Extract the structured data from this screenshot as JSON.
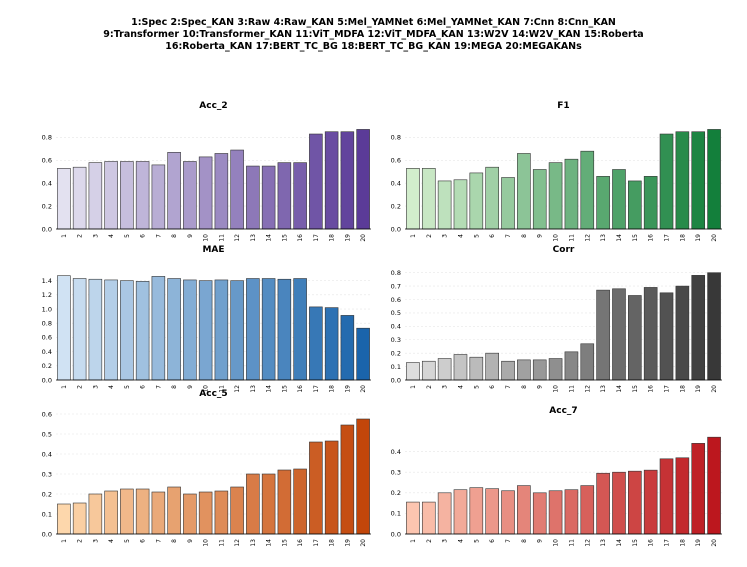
{
  "legend": {
    "line1": "1:Spec 2:Spec_KAN 3:Raw 4:Raw_KAN 5:Mel_YAMNet 6:Mel_YAMNet_KAN 7:Cnn 8:Cnn_KAN",
    "line2": "9:Transformer 10:Transformer_KAN 11:ViT_MDFA 12:ViT_MDFA_KAN 13:W2V 14:W2V_KAN 15:Roberta",
    "line3": "16:Roberta_KAN 17:BERT_TC_BG 18:BERT_TC_BG_KAN 19:MEGA 20:MEGAKANs"
  },
  "chart_data": [
    {
      "type": "bar",
      "title": "Acc_2",
      "categories": [
        "1",
        "2",
        "3",
        "4",
        "5",
        "6",
        "7",
        "8",
        "9",
        "10",
        "11",
        "12",
        "13",
        "14",
        "15",
        "16",
        "17",
        "18",
        "19",
        "20"
      ],
      "values": [
        0.53,
        0.54,
        0.58,
        0.59,
        0.59,
        0.59,
        0.56,
        0.67,
        0.59,
        0.63,
        0.66,
        0.69,
        0.55,
        0.55,
        0.58,
        0.58,
        0.83,
        0.85,
        0.85,
        0.87
      ],
      "ylim": [
        0,
        0.9
      ],
      "yticks": [
        0.0,
        0.2,
        0.4,
        0.6,
        0.8
      ],
      "tick_labels": [
        "0.0",
        "0.2",
        "0.4",
        "0.6",
        "0.8"
      ],
      "colors": {
        "light": "#e3e1f0",
        "dark": "#5b3b98"
      },
      "grid": true
    },
    {
      "type": "bar",
      "title": "F1",
      "categories": [
        "1",
        "2",
        "3",
        "4",
        "5",
        "6",
        "7",
        "8",
        "9",
        "10",
        "11",
        "12",
        "13",
        "14",
        "15",
        "16",
        "17",
        "18",
        "19",
        "20"
      ],
      "values": [
        0.53,
        0.53,
        0.42,
        0.43,
        0.49,
        0.54,
        0.45,
        0.66,
        0.52,
        0.58,
        0.61,
        0.68,
        0.46,
        0.52,
        0.42,
        0.46,
        0.83,
        0.85,
        0.85,
        0.87
      ],
      "ylim": [
        0,
        0.9
      ],
      "yticks": [
        0.0,
        0.2,
        0.4,
        0.6,
        0.8
      ],
      "tick_labels": [
        "0.0",
        "0.2",
        "0.4",
        "0.6",
        "0.8"
      ],
      "colors": {
        "light": "#d2edcc",
        "dark": "#137f3b"
      },
      "grid": true
    },
    {
      "type": "bar",
      "title": "MAE",
      "categories": [
        "1",
        "2",
        "3",
        "4",
        "5",
        "6",
        "7",
        "8",
        "9",
        "10",
        "11",
        "12",
        "13",
        "14",
        "15",
        "16",
        "17",
        "18",
        "19",
        "20"
      ],
      "values": [
        1.47,
        1.43,
        1.42,
        1.41,
        1.4,
        1.39,
        1.46,
        1.43,
        1.41,
        1.4,
        1.41,
        1.4,
        1.43,
        1.43,
        1.42,
        1.43,
        1.03,
        1.02,
        0.91,
        0.73
      ],
      "ylim": [
        0,
        1.55
      ],
      "yticks": [
        0.0,
        0.2,
        0.4,
        0.6,
        0.8,
        1.0,
        1.2,
        1.4
      ],
      "tick_labels": [
        "0.0",
        "0.2",
        "0.4",
        "0.6",
        "0.8",
        "1.0",
        "1.2",
        "1.4"
      ],
      "colors": {
        "light": "#d0e2f3",
        "dark": "#1a64ab"
      },
      "grid": true
    },
    {
      "type": "bar",
      "title": "Corr",
      "categories": [
        "1",
        "2",
        "3",
        "4",
        "5",
        "6",
        "7",
        "8",
        "9",
        "10",
        "11",
        "12",
        "13",
        "14",
        "15",
        "16",
        "17",
        "18",
        "19",
        "20"
      ],
      "values": [
        0.13,
        0.14,
        0.16,
        0.19,
        0.17,
        0.2,
        0.14,
        0.15,
        0.15,
        0.16,
        0.21,
        0.27,
        0.67,
        0.68,
        0.63,
        0.69,
        0.65,
        0.7,
        0.78,
        0.8
      ],
      "ylim": [
        0,
        0.82
      ],
      "yticks": [
        0.0,
        0.1,
        0.2,
        0.3,
        0.4,
        0.5,
        0.6,
        0.7,
        0.8
      ],
      "tick_labels": [
        "0.0",
        "0.1",
        "0.2",
        "0.3",
        "0.4",
        "0.5",
        "0.6",
        "0.7",
        "0.8"
      ],
      "colors": {
        "light": "#dedede",
        "dark": "#383838"
      },
      "grid": true
    },
    {
      "type": "bar",
      "title": "Acc_5",
      "categories": [
        "1",
        "2",
        "3",
        "4",
        "5",
        "6",
        "7",
        "8",
        "9",
        "10",
        "11",
        "12",
        "13",
        "14",
        "15",
        "16",
        "17",
        "18",
        "19",
        "20"
      ],
      "values": [
        0.15,
        0.155,
        0.2,
        0.215,
        0.225,
        0.225,
        0.21,
        0.235,
        0.2,
        0.21,
        0.215,
        0.235,
        0.3,
        0.3,
        0.32,
        0.325,
        0.46,
        0.465,
        0.545,
        0.575
      ],
      "ylim": [
        0,
        0.6
      ],
      "yticks": [
        0.0,
        0.1,
        0.2,
        0.3,
        0.4,
        0.5,
        0.6
      ],
      "tick_labels": [
        "0.0",
        "0.1",
        "0.2",
        "0.3",
        "0.4",
        "0.5",
        "0.6"
      ],
      "colors": {
        "light": "#fdd7ac",
        "dark": "#c2460a"
      },
      "grid": true
    },
    {
      "type": "bar",
      "title": "Acc_7",
      "categories": [
        "1",
        "2",
        "3",
        "4",
        "5",
        "6",
        "7",
        "8",
        "9",
        "10",
        "11",
        "12",
        "13",
        "14",
        "15",
        "16",
        "17",
        "18",
        "19",
        "20"
      ],
      "values": [
        0.155,
        0.155,
        0.2,
        0.215,
        0.225,
        0.22,
        0.21,
        0.235,
        0.2,
        0.21,
        0.215,
        0.235,
        0.295,
        0.3,
        0.305,
        0.31,
        0.365,
        0.37,
        0.44,
        0.47
      ],
      "ylim": [
        0,
        0.5
      ],
      "yticks": [
        0.0,
        0.1,
        0.2,
        0.3,
        0.4
      ],
      "tick_labels": [
        "0.0",
        "0.1",
        "0.2",
        "0.3",
        "0.4"
      ],
      "colors": {
        "light": "#fcc5b0",
        "dark": "#bc171e"
      },
      "grid": true
    }
  ]
}
